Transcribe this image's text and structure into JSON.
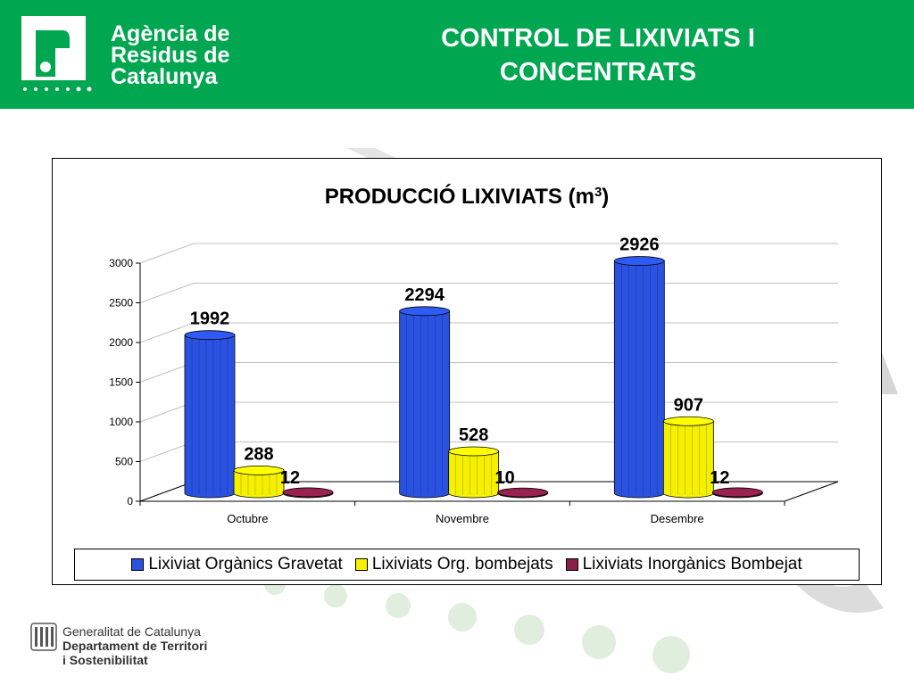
{
  "header": {
    "agency_line1": "Agència de",
    "agency_line2": "Residus de",
    "agency_line3": "Catalunya",
    "title_line1": "CONTROL DE LIXIVIATS I",
    "title_line2": "CONCENTRATS",
    "background_color": "#00a650"
  },
  "footer": {
    "line1": "Generalitat de Catalunya",
    "line2": "Departament de Territori",
    "line3": "i Sostenibilitat"
  },
  "chart_data": {
    "type": "bar",
    "title": "PRODUCCIÓ LIXIVIATS (m",
    "title_superscript": "3",
    "title_suffix": ")",
    "categories": [
      "Octubre",
      "Novembre",
      "Desembre"
    ],
    "series": [
      {
        "name": "Lixiviat Orgànics Gravetat",
        "values": [
          1992,
          2294,
          2926
        ],
        "color": "#2a52e0"
      },
      {
        "name": "Lixiviats Org. bombejats",
        "values": [
          288,
          528,
          907
        ],
        "color": "#f5f000"
      },
      {
        "name": "Lixiviats Inorgànics Bombejat",
        "values": [
          12,
          10,
          12
        ],
        "color": "#8b1f4a"
      }
    ],
    "data_labels": [
      [
        "1992",
        "2294",
        "2926"
      ],
      [
        "288",
        "528",
        "907"
      ],
      [
        "12",
        "10",
        "12"
      ]
    ],
    "yticks": [
      "0",
      "500",
      "1000",
      "1500",
      "2000",
      "2500",
      "3000"
    ],
    "ylim": [
      0,
      3000
    ],
    "grid": true,
    "legend_position": "bottom"
  }
}
